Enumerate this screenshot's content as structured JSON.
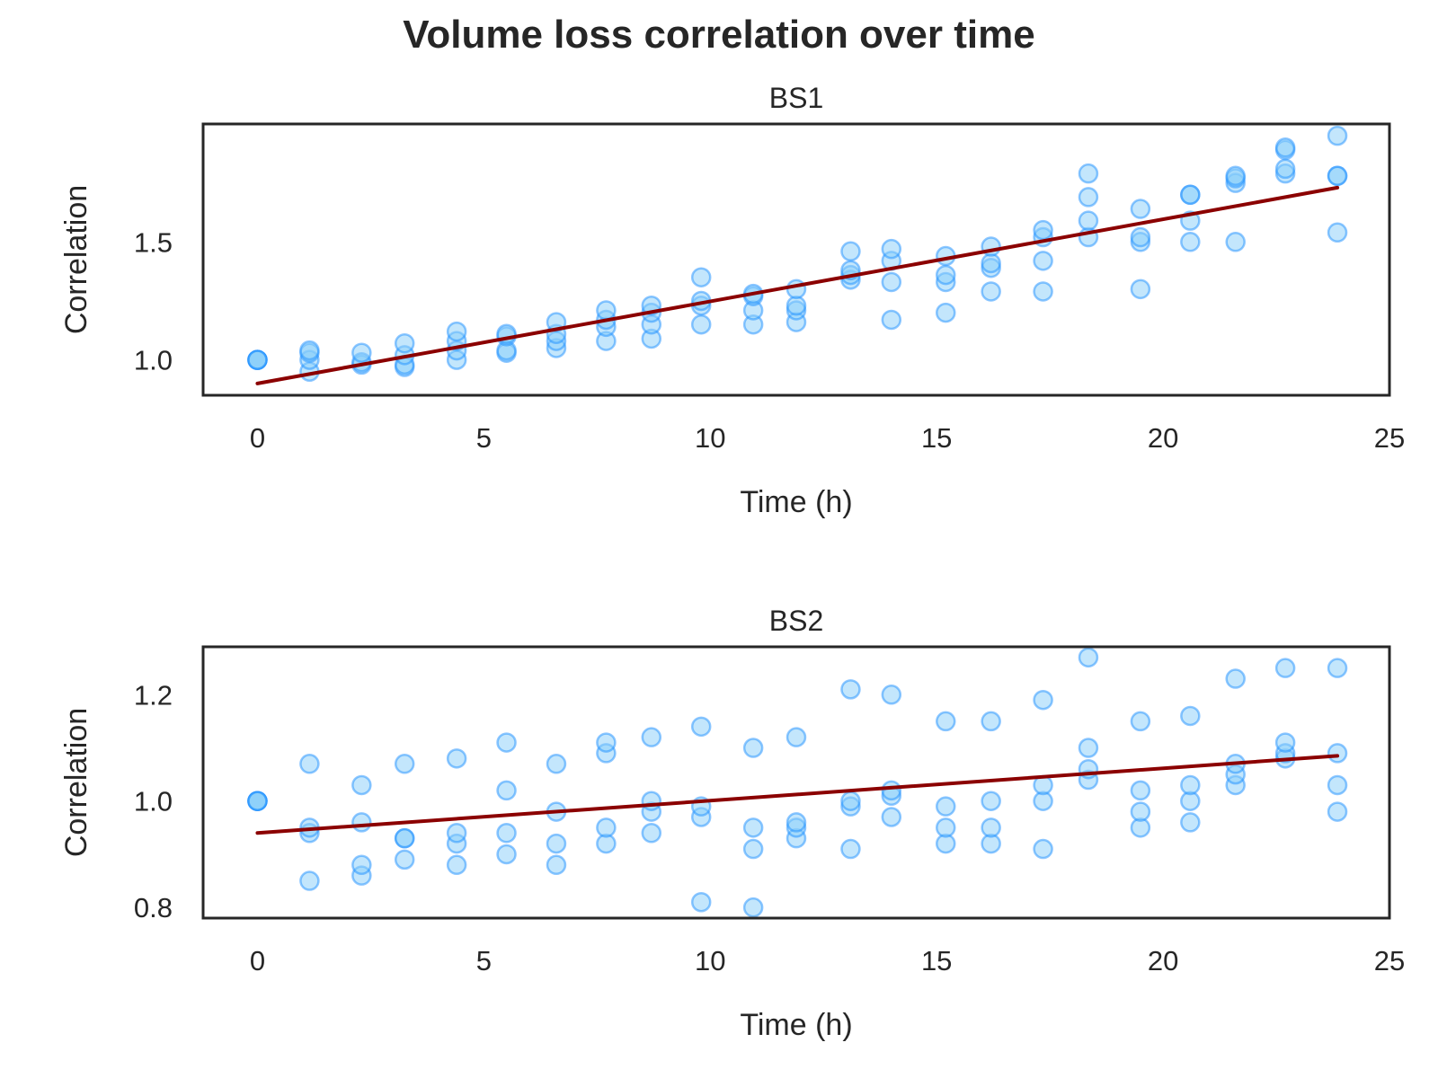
{
  "figure": {
    "title": "Volume loss correlation over time"
  },
  "colors": {
    "point_fill": "#87cefa",
    "point_stroke": "#1e90ff",
    "fit_line": "#8b0000",
    "frame": "#262626"
  },
  "chart_data": [
    {
      "type": "scatter",
      "title": "BS1",
      "xlabel": "Time (h)",
      "ylabel": "Correlation",
      "xlim": [
        -1.2,
        25
      ],
      "ylim": [
        0.85,
        2.0
      ],
      "xticks": [
        0,
        5,
        10,
        15,
        20,
        25
      ],
      "yticks": [
        1.0,
        1.5
      ],
      "ytick_labels": [
        "1.0",
        "1.5"
      ],
      "grid": false,
      "points": [
        [
          0,
          1.0
        ],
        [
          0,
          1.0
        ],
        [
          0,
          1.0
        ],
        [
          0,
          1.0
        ],
        [
          1.15,
          0.95
        ],
        [
          1.15,
          1.0
        ],
        [
          1.15,
          1.03
        ],
        [
          1.15,
          1.04
        ],
        [
          2.3,
          0.98
        ],
        [
          2.3,
          0.99
        ],
        [
          2.3,
          1.03
        ],
        [
          3.25,
          0.97
        ],
        [
          3.25,
          0.98
        ],
        [
          3.25,
          1.02
        ],
        [
          3.25,
          1.07
        ],
        [
          4.4,
          1.0
        ],
        [
          4.4,
          1.04
        ],
        [
          4.4,
          1.08
        ],
        [
          4.4,
          1.12
        ],
        [
          5.5,
          1.03
        ],
        [
          5.5,
          1.04
        ],
        [
          5.5,
          1.1
        ],
        [
          5.5,
          1.11
        ],
        [
          6.6,
          1.05
        ],
        [
          6.6,
          1.08
        ],
        [
          6.6,
          1.11
        ],
        [
          6.6,
          1.16
        ],
        [
          7.7,
          1.08
        ],
        [
          7.7,
          1.14
        ],
        [
          7.7,
          1.17
        ],
        [
          7.7,
          1.21
        ],
        [
          8.7,
          1.09
        ],
        [
          8.7,
          1.15
        ],
        [
          8.7,
          1.2
        ],
        [
          8.7,
          1.23
        ],
        [
          9.8,
          1.15
        ],
        [
          9.8,
          1.23
        ],
        [
          9.8,
          1.25
        ],
        [
          9.8,
          1.35
        ],
        [
          10.95,
          1.15
        ],
        [
          10.95,
          1.21
        ],
        [
          10.95,
          1.27
        ],
        [
          10.95,
          1.28
        ],
        [
          11.9,
          1.16
        ],
        [
          11.9,
          1.21
        ],
        [
          11.9,
          1.23
        ],
        [
          11.9,
          1.3
        ],
        [
          13.1,
          1.34
        ],
        [
          13.1,
          1.36
        ],
        [
          13.1,
          1.38
        ],
        [
          13.1,
          1.46
        ],
        [
          14.0,
          1.17
        ],
        [
          14.0,
          1.33
        ],
        [
          14.0,
          1.42
        ],
        [
          14.0,
          1.47
        ],
        [
          15.2,
          1.2
        ],
        [
          15.2,
          1.33
        ],
        [
          15.2,
          1.36
        ],
        [
          15.2,
          1.44
        ],
        [
          16.2,
          1.29
        ],
        [
          16.2,
          1.39
        ],
        [
          16.2,
          1.41
        ],
        [
          16.2,
          1.48
        ],
        [
          17.35,
          1.29
        ],
        [
          17.35,
          1.42
        ],
        [
          17.35,
          1.52
        ],
        [
          17.35,
          1.55
        ],
        [
          18.35,
          1.52
        ],
        [
          18.35,
          1.59
        ],
        [
          18.35,
          1.69
        ],
        [
          18.35,
          1.79
        ],
        [
          19.5,
          1.3
        ],
        [
          19.5,
          1.5
        ],
        [
          19.5,
          1.52
        ],
        [
          19.5,
          1.64
        ],
        [
          20.6,
          1.5
        ],
        [
          20.6,
          1.59
        ],
        [
          20.6,
          1.7
        ],
        [
          20.6,
          1.7
        ],
        [
          21.6,
          1.5
        ],
        [
          21.6,
          1.75
        ],
        [
          21.6,
          1.77
        ],
        [
          21.6,
          1.78
        ],
        [
          22.7,
          1.79
        ],
        [
          22.7,
          1.81
        ],
        [
          22.7,
          1.89
        ],
        [
          22.7,
          1.9
        ],
        [
          23.85,
          1.54
        ],
        [
          23.85,
          1.78
        ],
        [
          23.85,
          1.78
        ],
        [
          23.85,
          1.95
        ]
      ],
      "fit_line": {
        "x": [
          0,
          23.85
        ],
        "y": [
          0.9,
          1.73
        ]
      }
    },
    {
      "type": "scatter",
      "title": "BS2",
      "xlabel": "Time (h)",
      "ylabel": "Correlation",
      "xlim": [
        -1.2,
        25
      ],
      "ylim": [
        0.78,
        1.29
      ],
      "xticks": [
        0,
        5,
        10,
        15,
        20,
        25
      ],
      "yticks": [
        0.8,
        1.0,
        1.2
      ],
      "ytick_labels": [
        "0.8",
        "1.0",
        "1.2"
      ],
      "grid": false,
      "points": [
        [
          0,
          1.0
        ],
        [
          0,
          1.0
        ],
        [
          0,
          1.0
        ],
        [
          0,
          1.0
        ],
        [
          1.15,
          0.85
        ],
        [
          1.15,
          0.94
        ],
        [
          1.15,
          0.95
        ],
        [
          1.15,
          1.07
        ],
        [
          2.3,
          0.86
        ],
        [
          2.3,
          0.88
        ],
        [
          2.3,
          0.96
        ],
        [
          2.3,
          1.03
        ],
        [
          3.25,
          0.89
        ],
        [
          3.25,
          0.93
        ],
        [
          3.25,
          0.93
        ],
        [
          3.25,
          1.07
        ],
        [
          4.4,
          0.88
        ],
        [
          4.4,
          0.92
        ],
        [
          4.4,
          0.94
        ],
        [
          4.4,
          1.08
        ],
        [
          5.5,
          0.9
        ],
        [
          5.5,
          0.94
        ],
        [
          5.5,
          1.02
        ],
        [
          5.5,
          1.11
        ],
        [
          6.6,
          0.88
        ],
        [
          6.6,
          0.92
        ],
        [
          6.6,
          0.98
        ],
        [
          6.6,
          1.07
        ],
        [
          7.7,
          0.92
        ],
        [
          7.7,
          0.95
        ],
        [
          7.7,
          1.09
        ],
        [
          7.7,
          1.11
        ],
        [
          8.7,
          0.94
        ],
        [
          8.7,
          0.98
        ],
        [
          8.7,
          1.0
        ],
        [
          8.7,
          1.12
        ],
        [
          9.8,
          0.81
        ],
        [
          9.8,
          0.97
        ],
        [
          9.8,
          0.99
        ],
        [
          9.8,
          1.14
        ],
        [
          10.95,
          0.8
        ],
        [
          10.95,
          0.91
        ],
        [
          10.95,
          0.95
        ],
        [
          10.95,
          1.1
        ],
        [
          11.9,
          0.93
        ],
        [
          11.9,
          0.95
        ],
        [
          11.9,
          0.96
        ],
        [
          11.9,
          1.12
        ],
        [
          13.1,
          0.91
        ],
        [
          13.1,
          0.99
        ],
        [
          13.1,
          1.0
        ],
        [
          13.1,
          1.21
        ],
        [
          14.0,
          0.97
        ],
        [
          14.0,
          1.01
        ],
        [
          14.0,
          1.02
        ],
        [
          14.0,
          1.2
        ],
        [
          15.2,
          0.92
        ],
        [
          15.2,
          0.95
        ],
        [
          15.2,
          0.99
        ],
        [
          15.2,
          1.15
        ],
        [
          16.2,
          0.92
        ],
        [
          16.2,
          0.95
        ],
        [
          16.2,
          1.0
        ],
        [
          16.2,
          1.15
        ],
        [
          17.35,
          0.91
        ],
        [
          17.35,
          1.0
        ],
        [
          17.35,
          1.03
        ],
        [
          17.35,
          1.19
        ],
        [
          18.35,
          1.04
        ],
        [
          18.35,
          1.06
        ],
        [
          18.35,
          1.1
        ],
        [
          18.35,
          1.27
        ],
        [
          19.5,
          0.95
        ],
        [
          19.5,
          0.98
        ],
        [
          19.5,
          1.02
        ],
        [
          19.5,
          1.15
        ],
        [
          20.6,
          0.96
        ],
        [
          20.6,
          1.0
        ],
        [
          20.6,
          1.03
        ],
        [
          20.6,
          1.16
        ],
        [
          21.6,
          1.03
        ],
        [
          21.6,
          1.05
        ],
        [
          21.6,
          1.07
        ],
        [
          21.6,
          1.23
        ],
        [
          22.7,
          1.08
        ],
        [
          22.7,
          1.09
        ],
        [
          22.7,
          1.11
        ],
        [
          22.7,
          1.25
        ],
        [
          23.85,
          0.98
        ],
        [
          23.85,
          1.03
        ],
        [
          23.85,
          1.09
        ],
        [
          23.85,
          1.25
        ]
      ],
      "fit_line": {
        "x": [
          0,
          23.85
        ],
        "y": [
          0.94,
          1.085
        ]
      }
    }
  ]
}
